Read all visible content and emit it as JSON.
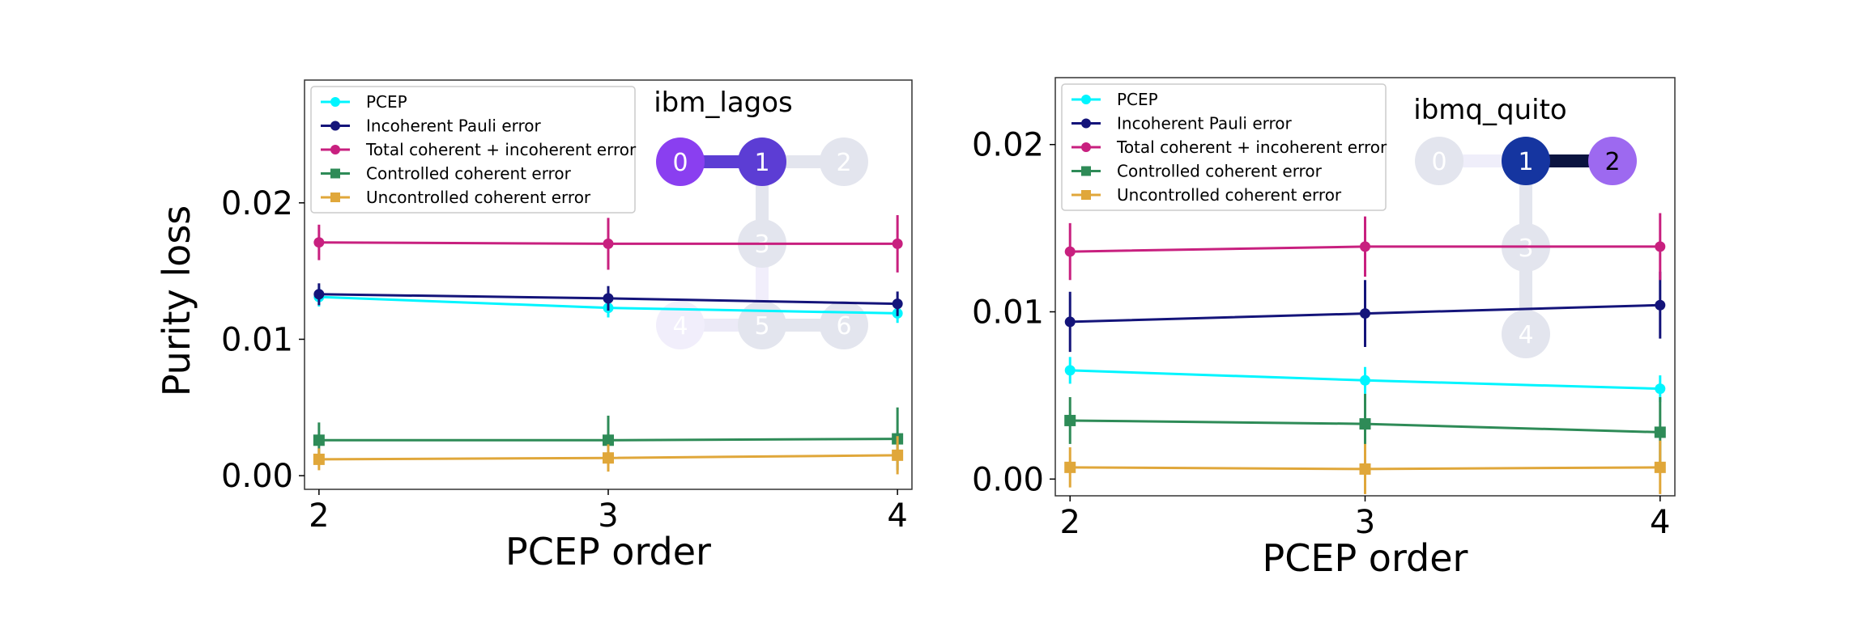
{
  "chart_data": [
    {
      "type": "line",
      "xlabel": "PCEP order",
      "ylabel": "Purity loss",
      "x": [
        2,
        3,
        4
      ],
      "xlim": [
        1.95,
        4.05
      ],
      "ylim": [
        -0.001,
        0.029
      ],
      "xticks": [
        2,
        3,
        4
      ],
      "yticks": [
        0.0,
        0.01,
        0.02
      ],
      "ytick_labels": [
        "0.00",
        "0.01",
        "0.02"
      ],
      "legend_position": "top-left",
      "grid": false,
      "series": [
        {
          "name": "PCEP",
          "values": [
            0.0131,
            0.0123,
            0.0119
          ],
          "errors": [
            0.0007,
            0.0007,
            0.0007
          ],
          "color": "#00f5ff",
          "marker": "circle"
        },
        {
          "name": "Incoherent Pauli error",
          "values": [
            0.0133,
            0.013,
            0.0126
          ],
          "errors": [
            0.0008,
            0.0009,
            0.0009
          ],
          "color": "#14147a",
          "marker": "circle"
        },
        {
          "name": "Total coherent + incoherent error",
          "values": [
            0.0171,
            0.017,
            0.017
          ],
          "errors": [
            0.0013,
            0.0019,
            0.0021
          ],
          "color": "#c8207f",
          "marker": "circle"
        },
        {
          "name": "Controlled coherent error",
          "values": [
            0.0026,
            0.0026,
            0.0027
          ],
          "errors": [
            0.0013,
            0.0018,
            0.0023
          ],
          "color": "#2e8b57",
          "marker": "square"
        },
        {
          "name": "Uncontrolled coherent error",
          "values": [
            0.0012,
            0.0013,
            0.0015
          ],
          "errors": [
            0.0008,
            0.001,
            0.0014
          ],
          "color": "#e0a73a",
          "marker": "square"
        }
      ],
      "inset": {
        "title": "ibm_lagos",
        "nodes": [
          {
            "label": "0",
            "color": "#8a3ff0",
            "text_color": "#ffffff",
            "gx": 0,
            "gy": 0
          },
          {
            "label": "1",
            "color": "#5c3dd4",
            "text_color": "#ffffff",
            "gx": 1,
            "gy": 0
          },
          {
            "label": "2",
            "color": "#e3e5ee",
            "text_color": "#ffffff",
            "gx": 2,
            "gy": 0
          },
          {
            "label": "3",
            "color": "#e3e5ee",
            "text_color": "#ffffff",
            "gx": 1,
            "gy": 1
          },
          {
            "label": "4",
            "color": "#f1eefb",
            "text_color": "#ffffff",
            "gx": 0,
            "gy": 2
          },
          {
            "label": "5",
            "color": "#e3e5ee",
            "text_color": "#ffffff",
            "gx": 1,
            "gy": 2
          },
          {
            "label": "6",
            "color": "#e3e5ee",
            "text_color": "#ffffff",
            "gx": 2,
            "gy": 2
          }
        ],
        "edges": [
          {
            "a": 0,
            "b": 1,
            "color": "#5c3dd4"
          },
          {
            "a": 1,
            "b": 2,
            "color": "#e3e5ee"
          },
          {
            "a": 1,
            "b": 3,
            "color": "#e3e5ee"
          },
          {
            "a": 3,
            "b": 5,
            "color": "#f1eefb"
          },
          {
            "a": 4,
            "b": 5,
            "color": "#eceaf7"
          },
          {
            "a": 5,
            "b": 6,
            "color": "#e3e5ee"
          }
        ]
      }
    },
    {
      "type": "line",
      "xlabel": "PCEP order",
      "ylabel": "",
      "x": [
        2,
        3,
        4
      ],
      "xlim": [
        1.95,
        4.05
      ],
      "ylim": [
        -0.001,
        0.024
      ],
      "xticks": [
        2,
        3,
        4
      ],
      "yticks": [
        0.0,
        0.01,
        0.02
      ],
      "ytick_labels": [
        "0.00",
        "0.01",
        "0.02"
      ],
      "legend_position": "top-left",
      "grid": false,
      "series": [
        {
          "name": "PCEP",
          "values": [
            0.0065,
            0.0059,
            0.0054
          ],
          "errors": [
            0.0008,
            0.0008,
            0.0008
          ],
          "color": "#00f5ff",
          "marker": "circle"
        },
        {
          "name": "Incoherent Pauli error",
          "values": [
            0.0094,
            0.0099,
            0.0104
          ],
          "errors": [
            0.0018,
            0.002,
            0.002
          ],
          "color": "#14147a",
          "marker": "circle"
        },
        {
          "name": "Total coherent + incoherent error",
          "values": [
            0.0136,
            0.0139,
            0.0139
          ],
          "errors": [
            0.0017,
            0.0018,
            0.002
          ],
          "color": "#c8207f",
          "marker": "circle"
        },
        {
          "name": "Controlled coherent error",
          "values": [
            0.0035,
            0.0033,
            0.0028
          ],
          "errors": [
            0.0014,
            0.0018,
            0.0021
          ],
          "color": "#2e8b57",
          "marker": "square"
        },
        {
          "name": "Uncontrolled coherent error",
          "values": [
            0.0007,
            0.0006,
            0.0007
          ],
          "errors": [
            0.0012,
            0.0015,
            0.0016
          ],
          "color": "#e0a73a",
          "marker": "square"
        }
      ],
      "inset": {
        "title": "ibmq_quito",
        "nodes": [
          {
            "label": "0",
            "color": "#e3e5ee",
            "text_color": "#ffffff",
            "gx": 0,
            "gy": 0
          },
          {
            "label": "1",
            "color": "#1535a0",
            "text_color": "#ffffff",
            "gx": 1,
            "gy": 0
          },
          {
            "label": "2",
            "color": "#9d69f0",
            "text_color": "#000000",
            "gx": 2,
            "gy": 0
          },
          {
            "label": "3",
            "color": "#e3e5ee",
            "text_color": "#ffffff",
            "gx": 1,
            "gy": 1
          },
          {
            "label": "4",
            "color": "#e3e5ee",
            "text_color": "#ffffff",
            "gx": 1,
            "gy": 2
          }
        ],
        "edges": [
          {
            "a": 0,
            "b": 1,
            "color": "#efeefa"
          },
          {
            "a": 1,
            "b": 2,
            "color": "#0b1440"
          },
          {
            "a": 1,
            "b": 3,
            "color": "#e3e5ee"
          },
          {
            "a": 3,
            "b": 4,
            "color": "#e3e5ee"
          }
        ]
      }
    }
  ]
}
